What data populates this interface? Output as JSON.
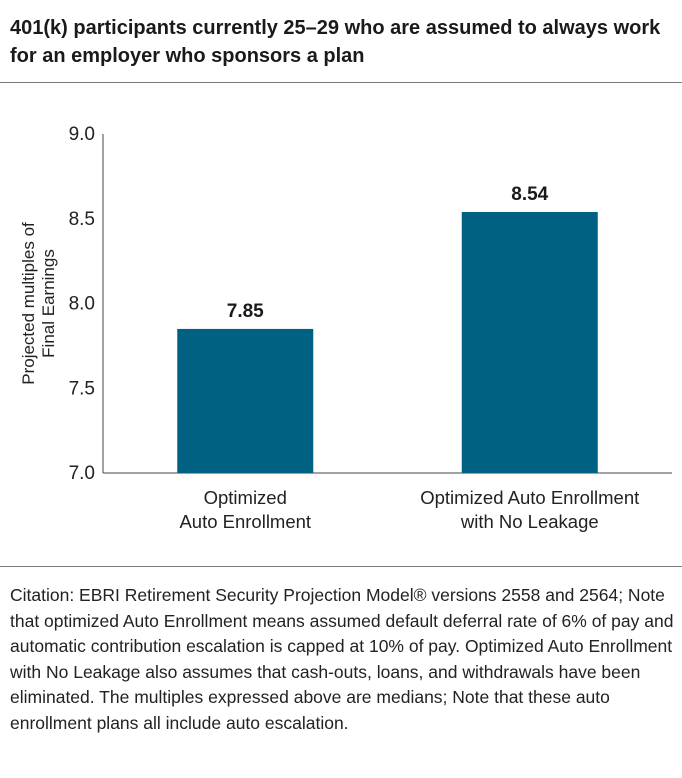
{
  "title": "401(k) participants currently 25–29 who are assumed to always work for an employer who sponsors a plan",
  "chart_data": {
    "type": "bar",
    "categories": [
      [
        "Optimized",
        "Auto Enrollment"
      ],
      [
        "Optimized Auto Enrollment",
        "with No Leakage"
      ]
    ],
    "values": [
      7.85,
      8.54
    ],
    "data_labels": [
      "7.85",
      "8.54"
    ],
    "ylabel": [
      "Projected multiples of",
      "Final Earnings"
    ],
    "ylim": [
      7.0,
      9.0
    ],
    "yticks": [
      "7.0",
      "7.5",
      "8.0",
      "8.5",
      "9.0"
    ],
    "grid": false,
    "bar_color": "#006182"
  },
  "citation": "Citation: EBRI Retirement Security Projection Model® versions 2558 and 2564; Note that optimized Auto Enrollment means assumed default deferral rate of 6% of pay and automatic contribution escalation is capped at 10% of pay. Optimized Auto Enrollment with No Leakage also assumes that cash-outs, loans, and withdrawals have been eliminated. The multiples expressed above are medians; Note that these auto enrollment plans all include auto escalation."
}
